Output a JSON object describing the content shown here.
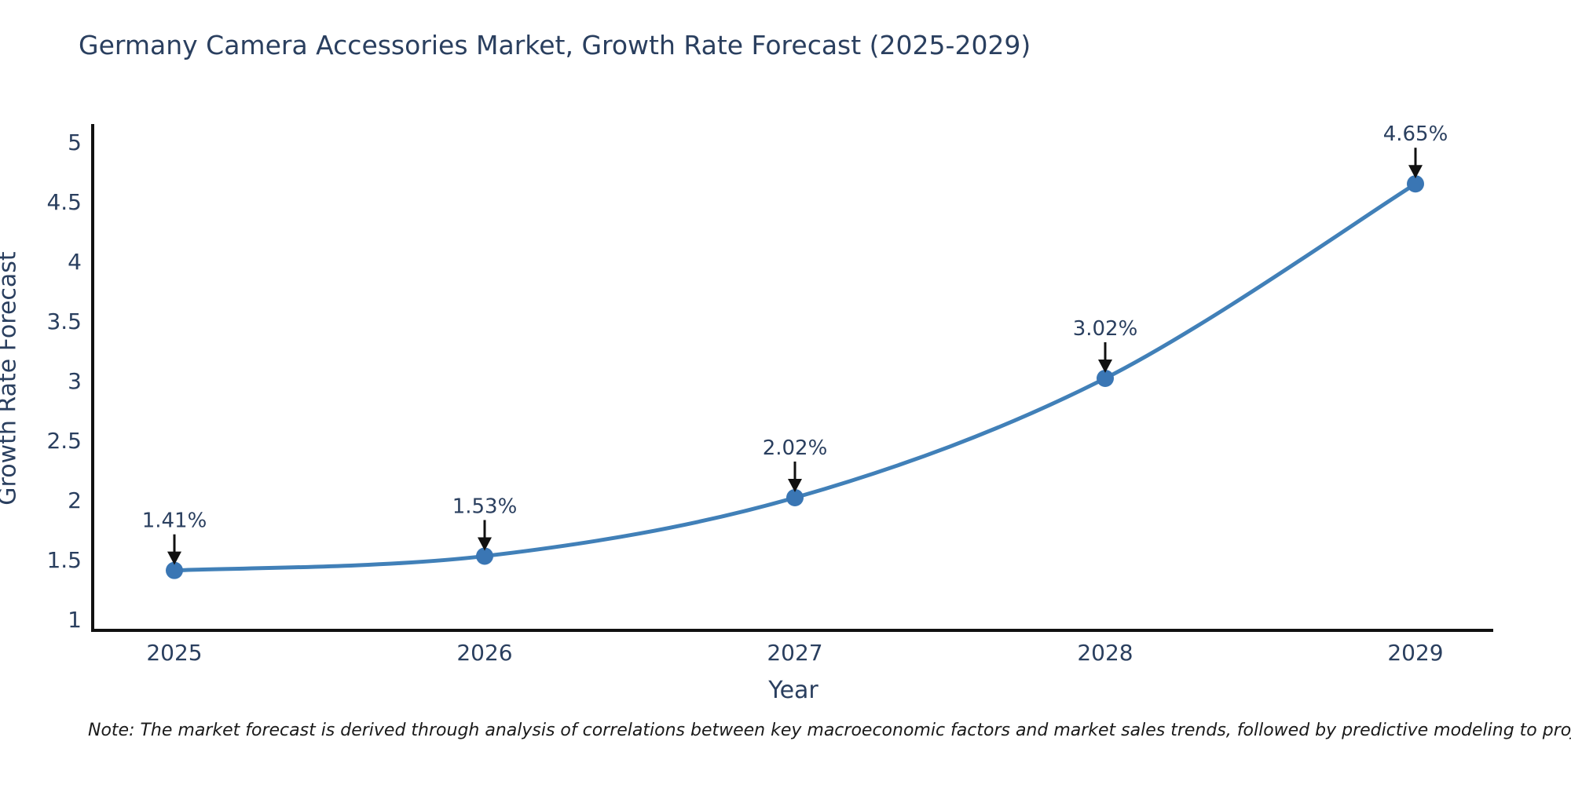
{
  "page": {
    "background": "#ffffff",
    "note": "Note: The market forecast is derived through analysis of correlations between key macroeconomic factors and market sales trends, followed by predictive modeling to project future sales"
  },
  "chart_data": {
    "type": "line",
    "title": "Germany Camera Accessories Market, Growth Rate Forecast (2025-2029)",
    "xlabel": "Year",
    "ylabel": "Growth Rate Forecast",
    "x": [
      "2025",
      "2026",
      "2027",
      "2028",
      "2029"
    ],
    "y": [
      1.41,
      1.53,
      2.02,
      3.02,
      4.65
    ],
    "point_labels": [
      "1.41%",
      "1.53%",
      "2.02%",
      "3.02%",
      "4.65%"
    ],
    "yticks": [
      1,
      1.5,
      2,
      2.5,
      3,
      3.5,
      4,
      4.5,
      5
    ],
    "ytick_labels": [
      "1",
      "1.5",
      "2",
      "2.5",
      "3",
      "3.5",
      "4",
      "4.5",
      "5"
    ],
    "ylim": [
      1,
      5
    ],
    "line_shape": "spline",
    "grid": false,
    "legend": "none",
    "colors": {
      "line": "#4180b8",
      "marker": "#3a76b4",
      "axis": "#111111",
      "tick_text": "#2a3f5f",
      "annotation_text": "#2a3f5f",
      "arrow": "#111111"
    }
  }
}
